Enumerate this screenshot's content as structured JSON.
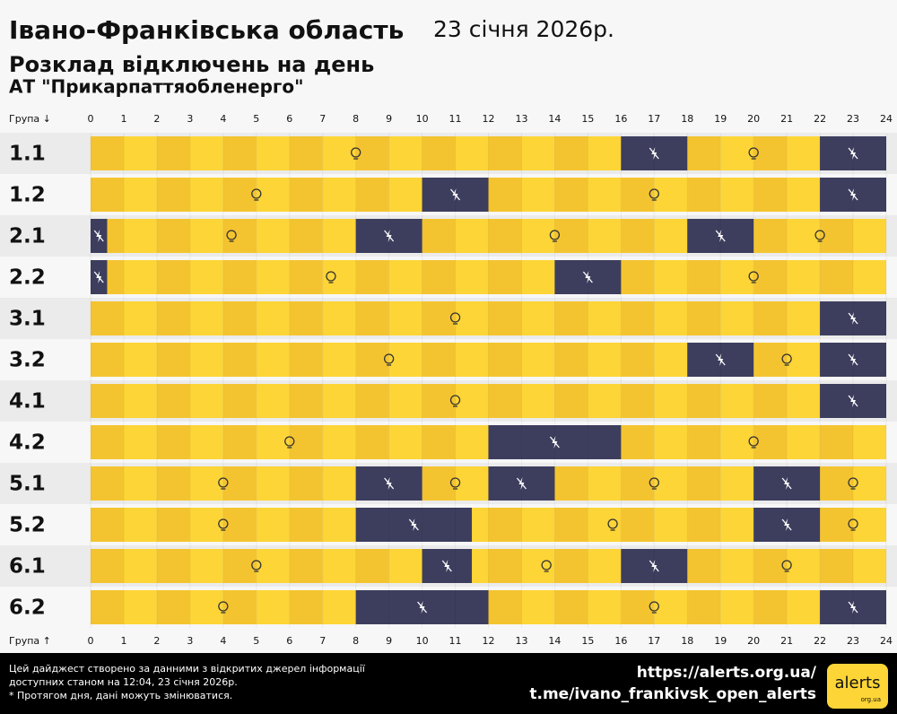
{
  "header": {
    "title": "Івано-Франківська область",
    "date": "23 січня 2026р.",
    "subtitle": "Розклад відключень на день",
    "company": "АТ \"Прикарпаттяобленерго\""
  },
  "chart_data": {
    "type": "gantt",
    "axis_label_top": "Група ↓",
    "axis_label_bottom": "Група ↑",
    "xlim": [
      0,
      24
    ],
    "xticks": [
      0,
      1,
      2,
      3,
      4,
      5,
      6,
      7,
      8,
      9,
      10,
      11,
      12,
      13,
      14,
      15,
      16,
      17,
      18,
      19,
      20,
      21,
      22,
      23,
      24
    ],
    "on_color": "#f4c430",
    "on_color_alt": "#fdd536",
    "off_color": "#3d3e5e",
    "rows": [
      {
        "name": "1.1",
        "off": [
          [
            16,
            18
          ],
          [
            22,
            24
          ]
        ]
      },
      {
        "name": "1.2",
        "off": [
          [
            10,
            12
          ],
          [
            22,
            24
          ]
        ]
      },
      {
        "name": "2.1",
        "off": [
          [
            0,
            0.5
          ],
          [
            8,
            10
          ],
          [
            18,
            20
          ]
        ]
      },
      {
        "name": "2.2",
        "off": [
          [
            0,
            0.5
          ],
          [
            14,
            16
          ]
        ]
      },
      {
        "name": "3.1",
        "off": [
          [
            22,
            24
          ]
        ]
      },
      {
        "name": "3.2",
        "off": [
          [
            18,
            20
          ],
          [
            22,
            24
          ]
        ]
      },
      {
        "name": "4.1",
        "off": [
          [
            22,
            24
          ]
        ]
      },
      {
        "name": "4.2",
        "off": [
          [
            12,
            16
          ]
        ]
      },
      {
        "name": "5.1",
        "off": [
          [
            8,
            10
          ],
          [
            12,
            14
          ],
          [
            20,
            22
          ]
        ]
      },
      {
        "name": "5.2",
        "off": [
          [
            8,
            11.5
          ],
          [
            20,
            22
          ]
        ]
      },
      {
        "name": "6.1",
        "off": [
          [
            10,
            11.5
          ],
          [
            16,
            18
          ]
        ]
      },
      {
        "name": "6.2",
        "off": [
          [
            8,
            12
          ],
          [
            22,
            24
          ]
        ]
      }
    ]
  },
  "footer": {
    "note_lines": [
      "Цей дайджест створено за данними з відкритих джерел інформації",
      "доступних станом на 12:04, 23 січня 2026р.",
      "* Протягом дня, дані можуть змінюватися."
    ],
    "links": [
      "https://alerts.org.ua/",
      "t.me/ivano_frankivsk_open_alerts"
    ],
    "logo": "alerts",
    "logo_sub": "org.ua"
  }
}
